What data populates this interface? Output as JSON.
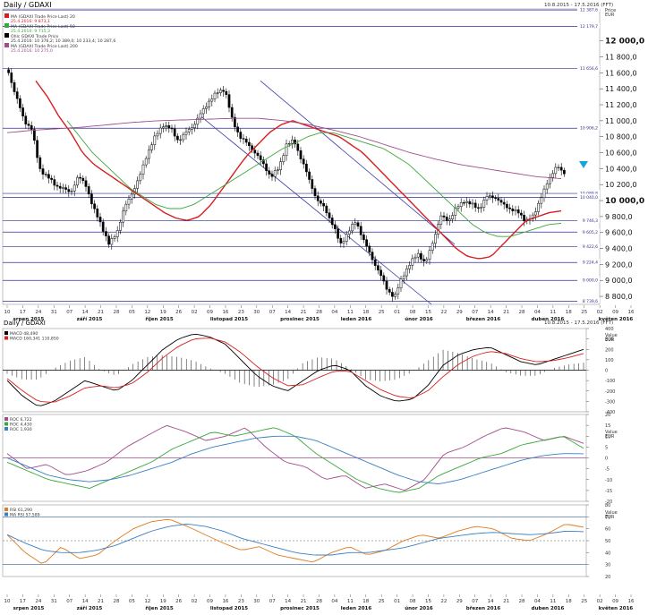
{
  "header": {
    "title": "Daily / GDAXI",
    "date_range": "10.8.2015 - 17.5.2016 (FFT)",
    "price_label": "Price",
    "currency": "EUR"
  },
  "price_panel": {
    "legend": [
      {
        "text": "MA (GDAXI Trade Price Last) 20",
        "sub": "25.4.2016: 9 873,1",
        "color": "#d81e1e"
      },
      {
        "text": "MA (GDAXI Trade Price Last) 50",
        "sub": "25.4.2016: 9 715,3",
        "color": "#3aa83a"
      },
      {
        "text": "Ohlc GDAXI Trade Price",
        "sub": "25.4.2016: 10 376,2; 10 389,0; 10 233,4; 10 287,6",
        "color": "#000000"
      },
      {
        "text": "MA (GDAXI Trade Price Last) 200",
        "sub": "25.4.2016: 10 275,0",
        "color": "#a14d8b"
      }
    ],
    "y_ticks": [
      "12 000,0",
      "11 800,0",
      "11 600,0",
      "11 400,0",
      "11 200,0",
      "11 000,0",
      "10 800,0",
      "10 600,0",
      "10 400,0",
      "10 200,0",
      "10 000,0",
      "9 800,0",
      "9 600,0",
      "9 400,0",
      "9 200,0",
      "9 000,0",
      "8 800,0"
    ],
    "hlines": [
      {
        "value": 12387.6,
        "label": "12 387,6"
      },
      {
        "value": 12179.7,
        "label": "12 179,7"
      },
      {
        "value": 11656.6,
        "label": "11 656,6"
      },
      {
        "value": 10906.2,
        "label": "10 906,2"
      },
      {
        "value": 10089.8,
        "label": "10 089,8"
      },
      {
        "value": 10040,
        "label": "10 040,0"
      },
      {
        "value": 9746.3,
        "label": "9 746,3"
      },
      {
        "value": 9605.2,
        "label": "9 605,2"
      },
      {
        "value": 9422.6,
        "label": "9 422,6"
      },
      {
        "value": 9224.4,
        "label": "9 224,4"
      },
      {
        "value": 9000,
        "label": "9 000,0"
      },
      {
        "value": 8739.6,
        "label": "8 739,6"
      }
    ]
  },
  "macd_panel": {
    "title": "Daily / GDAXI",
    "date_range": "10.8.2015 - 17.5.2016 (FFT)",
    "legend": [
      {
        "text": "MACD 48,490",
        "color": "#000000"
      },
      {
        "text": "MACD 160,341 110,850",
        "color": "#d81e1e"
      }
    ],
    "value_label": "Value",
    "currency": "EUR",
    "y_ticks": [
      "400",
      "300",
      "200",
      "100",
      "0",
      "-100",
      "-200",
      "-300",
      "-400"
    ]
  },
  "roc_panel": {
    "legend": [
      {
        "text": "ROC 6,722",
        "color": "#a14d8b"
      },
      {
        "text": "ROC 4,430",
        "color": "#3aa83a"
      },
      {
        "text": "ROC 1,930",
        "color": "#3a7fc4"
      }
    ],
    "value_label": "Value",
    "currency": "EUR",
    "y_ticks": [
      "20",
      "15",
      "10",
      "5",
      "0",
      "-5",
      "-10",
      "-15",
      "-20"
    ]
  },
  "rsi_panel": {
    "legend": [
      {
        "text": "RSI 61,290",
        "color": "#e07b1f"
      },
      {
        "text": "MA RSI 57,589",
        "color": "#3a7fc4"
      }
    ],
    "value_label": "Value",
    "currency": "EUR",
    "y_ticks": [
      "80",
      "70",
      "60",
      "50",
      "40",
      "30",
      "20"
    ]
  },
  "x_axis": {
    "day_ticks": [
      "10",
      "17",
      "24",
      "31",
      "07",
      "14",
      "21",
      "28",
      "05",
      "12",
      "19",
      "26",
      "02",
      "09",
      "16",
      "23",
      "30",
      "07",
      "14",
      "21",
      "28",
      "04",
      "11",
      "18",
      "25",
      "01",
      "08",
      "15",
      "22",
      "29",
      "07",
      "14",
      "21",
      "28",
      "04",
      "11",
      "18",
      "25",
      "02",
      "09",
      "16"
    ],
    "months": [
      "srpen 2015",
      "září 2015",
      "říjen 2015",
      "listopad 2015",
      "prosinec 2015",
      "leden 2016",
      "únor 2016",
      "březen 2016",
      "duben 2016",
      "květen 2016"
    ]
  },
  "chart_data": [
    {
      "type": "candlestick",
      "title": "Daily / GDAXI",
      "ylim": [
        8700,
        12400
      ],
      "series": [
        {
          "name": "Ohlc GDAXI Trade Price",
          "close_profile": [
            11600,
            11300,
            11000,
            10900,
            10400,
            10300,
            10200,
            10150,
            10100,
            10300,
            10200,
            9900,
            9700,
            9450,
            9600,
            9900,
            10100,
            10300,
            10600,
            10800,
            10950,
            10900,
            10750,
            10850,
            10950,
            11100,
            11250,
            11350,
            11400,
            11000,
            10800,
            10700,
            10600,
            10450,
            10300,
            10400,
            10700,
            10750,
            10500,
            10250,
            10000,
            9900,
            9700,
            9450,
            9600,
            9750,
            9500,
            9300,
            9100,
            8900,
            8780,
            9050,
            9200,
            9350,
            9200,
            9500,
            9800,
            9750,
            9900,
            10000,
            9950,
            9900,
            10050,
            10050,
            9950,
            9900,
            9850,
            9750,
            9800,
            10050,
            10250,
            10450,
            10320
          ]
        },
        {
          "name": "MA (GDAXI Trade Price Last) 20",
          "values": [
            11500,
            11300,
            11050,
            10850,
            10600,
            10450,
            10350,
            10250,
            10150,
            10050,
            9950,
            9850,
            9780,
            9750,
            9800,
            9950,
            10150,
            10350,
            10550,
            10700,
            10850,
            10950,
            11000,
            10950,
            10900,
            10850,
            10800,
            10700,
            10600,
            10450,
            10300,
            10150,
            10000,
            9850,
            9700,
            9550,
            9400,
            9300,
            9270,
            9300,
            9450,
            9600,
            9750,
            9800,
            9850,
            9870
          ]
        },
        {
          "name": "MA (GDAXI Trade Price Last) 50",
          "values": [
            11000,
            10800,
            10600,
            10450,
            10300,
            10150,
            10050,
            9950,
            9900,
            9900,
            9950,
            10050,
            10150,
            10250,
            10350,
            10450,
            10550,
            10650,
            10720,
            10800,
            10850,
            10850,
            10800,
            10750,
            10700,
            10650,
            10550,
            10450,
            10300,
            10150,
            10000,
            9850,
            9700,
            9600,
            9550,
            9550,
            9600,
            9650,
            9700,
            9715
          ]
        },
        {
          "name": "MA (GDAXI Trade Price Last) 200",
          "values": [
            10850,
            10880,
            10900,
            10920,
            10950,
            10980,
            11000,
            11010,
            11020,
            11030,
            11030,
            11000,
            10950,
            10880,
            10800,
            10700,
            10600,
            10520,
            10450,
            10400,
            10350,
            10300,
            10275
          ]
        }
      ]
    },
    {
      "type": "line",
      "title": "MACD",
      "ylim": [
        -400,
        400
      ],
      "series": [
        {
          "name": "MACD",
          "values": [
            -100,
            -250,
            -350,
            -300,
            -200,
            -100,
            -150,
            -200,
            -100,
            50,
            200,
            300,
            350,
            320,
            250,
            100,
            -50,
            -150,
            -200,
            -100,
            0,
            50,
            0,
            -150,
            -250,
            -300,
            -280,
            -150,
            50,
            150,
            200,
            220,
            150,
            80,
            50,
            100,
            150,
            200
          ]
        },
        {
          "name": "MACD",
          "values": [
            -80,
            -200,
            -300,
            -310,
            -250,
            -170,
            -150,
            -170,
            -130,
            -20,
            120,
            230,
            300,
            310,
            270,
            170,
            40,
            -70,
            -150,
            -140,
            -70,
            -10,
            -10,
            -100,
            -190,
            -250,
            -270,
            -200,
            -60,
            60,
            140,
            180,
            160,
            110,
            80,
            90,
            120,
            160
          ]
        }
      ]
    },
    {
      "type": "line",
      "title": "ROC",
      "ylim": [
        -20,
        20
      ],
      "series": [
        {
          "name": "ROC",
          "values": [
            2,
            -5,
            -3,
            -8,
            -6,
            -2,
            5,
            10,
            15,
            12,
            8,
            10,
            14,
            5,
            -2,
            -4,
            -10,
            -8,
            -14,
            -12,
            -15,
            -10,
            2,
            5,
            10,
            14,
            12,
            8,
            10,
            6.7
          ]
        },
        {
          "name": "ROC",
          "values": [
            -2,
            -6,
            -10,
            -12,
            -14,
            -10,
            -6,
            -2,
            4,
            8,
            12,
            10,
            12,
            14,
            10,
            2,
            -4,
            -10,
            -14,
            -16,
            -14,
            -8,
            -4,
            0,
            2,
            6,
            8,
            10,
            4.4
          ]
        },
        {
          "name": "ROC",
          "values": [
            0,
            -4,
            -8,
            -10,
            -11,
            -10,
            -8,
            -5,
            -2,
            2,
            5,
            7,
            9,
            10,
            10,
            8,
            4,
            0,
            -4,
            -8,
            -11,
            -12,
            -10,
            -7,
            -4,
            -1,
            1,
            2,
            1.9
          ]
        }
      ]
    },
    {
      "type": "line",
      "title": "RSI",
      "ylim": [
        20,
        80
      ],
      "series": [
        {
          "name": "RSI",
          "values": [
            55,
            40,
            30,
            45,
            35,
            38,
            50,
            60,
            66,
            68,
            62,
            55,
            48,
            42,
            45,
            38,
            35,
            32,
            40,
            45,
            38,
            42,
            50,
            55,
            52,
            58,
            62,
            60,
            52,
            50,
            56,
            64,
            61.3
          ]
        },
        {
          "name": "MA RSI",
          "values": [
            55,
            48,
            42,
            40,
            40,
            42,
            46,
            52,
            58,
            62,
            64,
            62,
            58,
            52,
            48,
            44,
            40,
            38,
            38,
            40,
            40,
            42,
            44,
            48,
            52,
            54,
            56,
            57,
            56,
            55,
            56,
            58,
            57.6
          ]
        }
      ]
    }
  ]
}
